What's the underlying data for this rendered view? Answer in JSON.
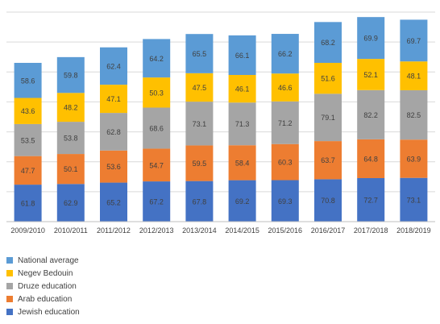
{
  "chart_data": {
    "type": "bar",
    "stacked": true,
    "categories": [
      "2009/2010",
      "2010/2011",
      "2011/2012",
      "2012/2013",
      "2013/2014",
      "2014/2015",
      "2015/2016",
      "2016/2017",
      "2017/2018",
      "2018/2019"
    ],
    "series": [
      {
        "name": "Jewish education",
        "color": "#4472c4",
        "values": [
          61.8,
          62.9,
          65.2,
          67.2,
          67.8,
          69.2,
          69.3,
          70.8,
          72.7,
          73.1
        ]
      },
      {
        "name": "Arab education",
        "color": "#ed7d31",
        "values": [
          47.7,
          50.1,
          53.6,
          54.7,
          59.5,
          58.4,
          60.3,
          63.7,
          64.8,
          63.9
        ]
      },
      {
        "name": "Druze education",
        "color": "#a5a5a5",
        "values": [
          53.5,
          53.8,
          62.8,
          68.6,
          73.1,
          71.3,
          71.2,
          79.1,
          82.2,
          82.5
        ]
      },
      {
        "name": "Negev Bedouin",
        "color": "#ffc000",
        "values": [
          43.6,
          48.2,
          47.1,
          50.3,
          47.5,
          46.1,
          46.6,
          51.6,
          52.1,
          48.1
        ]
      },
      {
        "name": "National average",
        "color": "#5b9bd5",
        "values": [
          58.6,
          59.8,
          62.4,
          64.2,
          65.5,
          66.1,
          66.2,
          68.2,
          69.9,
          69.7
        ]
      }
    ],
    "legend_order": [
      "National average",
      "Negev Bedouin",
      "Druze education",
      "Arab education",
      "Jewish education"
    ],
    "ylim": [
      0,
      350
    ],
    "grid": true,
    "legend_position": "bottom-left",
    "title": "",
    "xlabel": "",
    "ylabel": ""
  }
}
